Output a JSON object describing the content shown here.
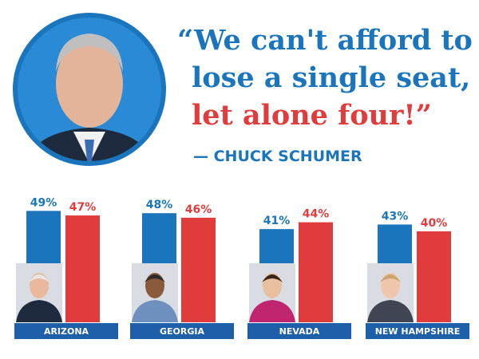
{
  "quote": {
    "lines": [
      "“We can't afford to",
      "lose a single seat,",
      "let alone four!”"
    ],
    "line_colors": [
      "#1b75bc",
      "#1b75bc",
      "#e03c3c"
    ],
    "attribution": "— CHUCK SCHUMER"
  },
  "chart_data": {
    "type": "bar",
    "categories": [
      "ARIZONA",
      "GEORGIA",
      "NEVADA",
      "NEW HAMPSHIRE"
    ],
    "series": [
      {
        "color": "#1b75bc",
        "values": [
          49,
          48,
          41,
          43
        ],
        "value_labels": [
          "49%",
          "48%",
          "41%",
          "43%"
        ]
      },
      {
        "color": "#e03c3c",
        "values": [
          47,
          46,
          44,
          40
        ],
        "value_labels": [
          "47%",
          "46%",
          "44%",
          "40%"
        ]
      }
    ]
  }
}
